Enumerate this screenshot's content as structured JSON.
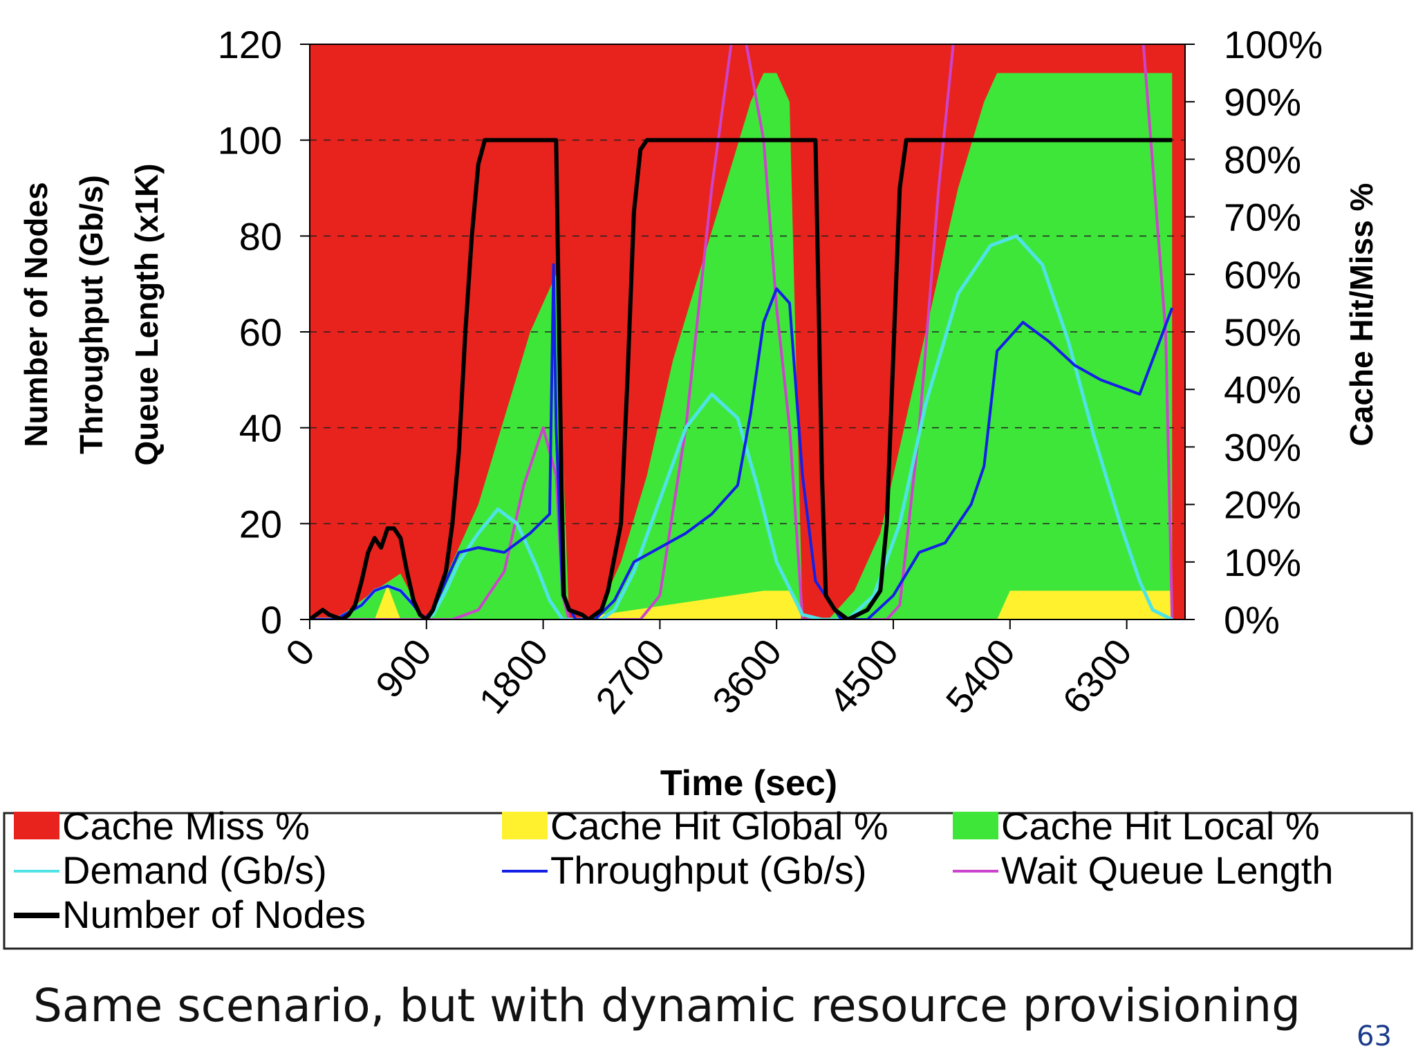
{
  "chart_data": {
    "type": "area",
    "xlabel": "Time (sec)",
    "ylabel_left": [
      "Number of Nodes",
      "Throughput (Gb/s)",
      "Queue Length (x1K)"
    ],
    "ylabel_right": "Cache Hit/Miss %",
    "x_ticks": [
      0,
      900,
      1800,
      2700,
      3600,
      4500,
      5400,
      6300
    ],
    "x_range": [
      0,
      6750
    ],
    "y_left_ticks": [
      0,
      20,
      40,
      60,
      80,
      100,
      120
    ],
    "y_left_range": [
      0,
      120
    ],
    "y_right_ticks": [
      "0%",
      "10%",
      "20%",
      "30%",
      "40%",
      "50%",
      "60%",
      "70%",
      "80%",
      "90%",
      "100%"
    ],
    "y_right_range": [
      0,
      100
    ],
    "grid": "dashed horizontal",
    "legend_position": "bottom",
    "legend": [
      {
        "label": "Cache Miss %",
        "color": "#e8231d",
        "marker": "square"
      },
      {
        "label": "Cache Hit Global %",
        "color": "#fff12e",
        "marker": "square"
      },
      {
        "label": "Cache Hit Local %",
        "color": "#3fe63a",
        "marker": "square"
      },
      {
        "label": "Demand (Gb/s)",
        "color": "#4fe3e6",
        "marker": "line"
      },
      {
        "label": "Throughput (Gb/s)",
        "color": "#1420e6",
        "marker": "line"
      },
      {
        "label": "Wait Queue Length",
        "color": "#cc44cc",
        "marker": "line"
      },
      {
        "label": "Number of Nodes",
        "color": "#000000",
        "marker": "line"
      }
    ],
    "cache_hit_local_pct": {
      "x": [
        0,
        200,
        500,
        700,
        880,
        900,
        1100,
        1300,
        1500,
        1700,
        1900,
        2000,
        2150,
        2200,
        2400,
        2600,
        2800,
        3000,
        3200,
        3400,
        3500,
        3600,
        3700,
        3800,
        3950,
        4000,
        4200,
        4400,
        4600,
        4800,
        5000,
        5200,
        5300,
        5400,
        5600,
        6000,
        6400,
        6650
      ],
      "y": [
        0,
        0,
        5,
        8,
        0,
        0,
        10,
        20,
        35,
        50,
        60,
        0,
        0,
        0,
        10,
        25,
        45,
        60,
        75,
        90,
        95,
        95,
        90,
        0,
        0,
        0,
        5,
        15,
        35,
        55,
        75,
        90,
        95,
        95,
        95,
        95,
        95,
        95
      ]
    },
    "cache_hit_global_pct": {
      "x": [
        0,
        500,
        600,
        700,
        880,
        1900,
        2000,
        3500,
        3600,
        3700,
        3800,
        5300,
        5400,
        5800,
        6200,
        6500,
        6650
      ],
      "y": [
        0,
        0,
        6,
        0,
        0,
        0,
        0,
        5,
        5,
        5,
        0,
        0,
        5,
        5,
        5,
        5,
        5
      ]
    },
    "series": [
      {
        "name": "Number of Nodes",
        "x": [
          0,
          100,
          150,
          250,
          300,
          350,
          400,
          450,
          500,
          550,
          600,
          650,
          700,
          750,
          800,
          850,
          900,
          950,
          1000,
          1050,
          1100,
          1150,
          1200,
          1250,
          1300,
          1350,
          1400,
          1900,
          1940,
          1960,
          2000,
          2100,
          2150,
          2250,
          2300,
          2400,
          2450,
          2500,
          2550,
          2600,
          3900,
          3950,
          3980,
          4050,
          4100,
          4150,
          4300,
          4400,
          4450,
          4500,
          4550,
          4600,
          6650
        ],
        "y": [
          0,
          2,
          1,
          0,
          1,
          3,
          8,
          14,
          17,
          15,
          19,
          19,
          17,
          10,
          4,
          1,
          0,
          2,
          6,
          10,
          20,
          35,
          60,
          80,
          95,
          100,
          100,
          100,
          30,
          5,
          2,
          1,
          0,
          2,
          6,
          20,
          50,
          85,
          98,
          100,
          100,
          30,
          5,
          2,
          1,
          0,
          2,
          6,
          20,
          55,
          90,
          100,
          100
        ]
      },
      {
        "name": "Demand (Gb/s)",
        "x": [
          0,
          200,
          400,
          500,
          600,
          700,
          800,
          880,
          950,
          1050,
          1150,
          1300,
          1450,
          1600,
          1750,
          1850,
          1950,
          2050,
          2150,
          2250,
          2350,
          2500,
          2700,
          2900,
          3100,
          3300,
          3450,
          3600,
          3800,
          3950,
          4150,
          4350,
          4550,
          4750,
          5000,
          5250,
          5450,
          5650,
          5850,
          6050,
          6250,
          6400,
          6500,
          6650
        ],
        "y": [
          0,
          0,
          3,
          6,
          7,
          6,
          3,
          0,
          1,
          6,
          12,
          18,
          23,
          20,
          11,
          4,
          0,
          0,
          0,
          0,
          2,
          10,
          25,
          40,
          47,
          42,
          28,
          12,
          1,
          0,
          0,
          5,
          20,
          45,
          68,
          78,
          80,
          74,
          58,
          38,
          20,
          8,
          2,
          0
        ]
      },
      {
        "name": "Throughput (Gb/s)",
        "x": [
          0,
          200,
          400,
          500,
          600,
          700,
          800,
          880,
          950,
          1050,
          1150,
          1300,
          1500,
          1700,
          1850,
          1880,
          1900,
          1950,
          2050,
          2200,
          2350,
          2500,
          2700,
          2900,
          3100,
          3300,
          3400,
          3500,
          3600,
          3700,
          3800,
          3900,
          4100,
          4300,
          4500,
          4700,
          4900,
          5100,
          5200,
          5300,
          5500,
          5700,
          5900,
          6100,
          6300,
          6400,
          6650
        ],
        "y": [
          0,
          0,
          3,
          6,
          7,
          6,
          3,
          0,
          2,
          8,
          14,
          15,
          14,
          18,
          22,
          74,
          40,
          5,
          0,
          0,
          4,
          12,
          15,
          18,
          22,
          28,
          43,
          62,
          69,
          66,
          30,
          8,
          0,
          0,
          5,
          14,
          16,
          24,
          32,
          56,
          62,
          58,
          53,
          50,
          48,
          47,
          65
        ]
      },
      {
        "name": "Wait Queue Length",
        "x": [
          0,
          1100,
          1300,
          1500,
          1650,
          1800,
          1900,
          1950,
          2000,
          2550,
          2700,
          2900,
          3100,
          3300,
          3500,
          3600,
          3700,
          3800,
          3900,
          4450,
          4550,
          4700,
          4850,
          5000,
          5150,
          6400,
          6600,
          6650
        ],
        "y": [
          0,
          0,
          2,
          10,
          28,
          40,
          30,
          5,
          0,
          0,
          5,
          40,
          90,
          130,
          100,
          65,
          40,
          0,
          0,
          0,
          3,
          40,
          90,
          130,
          130,
          130,
          60,
          0
        ]
      }
    ]
  },
  "caption": "Same scenario, but with dynamic resource provisioning",
  "page_number": "63"
}
